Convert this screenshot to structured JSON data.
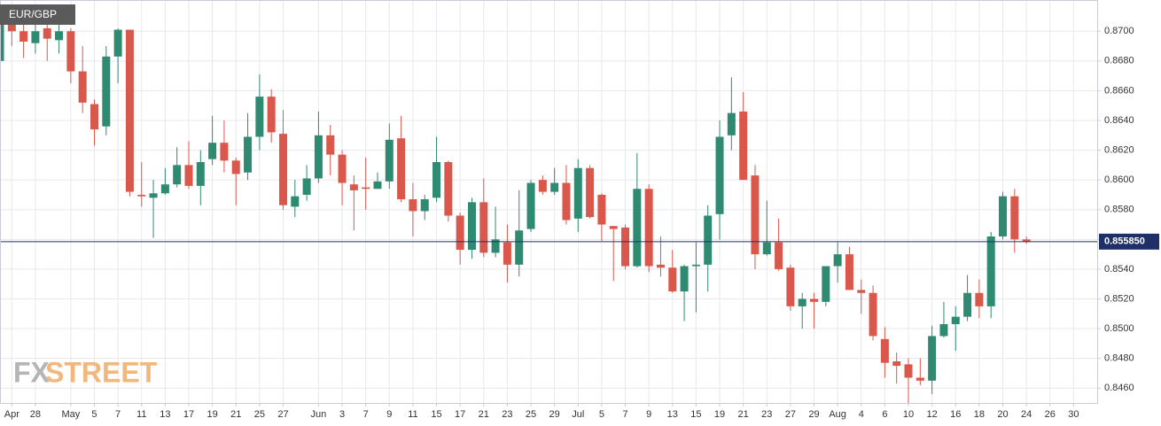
{
  "chart_data": {
    "type": "candlestick",
    "title": "EUR/GBP",
    "brand": {
      "prefix": "FX",
      "name": "STREET"
    },
    "up_color": "#2f8a72",
    "down_color": "#d9584b",
    "grid": true,
    "x": [
      0,
      1,
      2,
      3,
      4,
      5,
      6,
      7,
      8,
      9,
      10,
      11,
      12,
      13,
      14,
      15,
      16,
      17,
      18,
      19,
      20,
      21,
      22,
      23,
      24,
      25,
      26,
      27,
      28,
      29,
      30,
      31,
      32,
      33,
      34,
      35,
      36,
      37,
      38,
      39,
      40,
      41,
      42,
      43,
      44,
      45,
      46,
      47,
      48,
      49,
      50,
      51,
      52,
      53,
      54,
      55,
      56,
      57,
      58,
      59,
      60,
      61,
      62,
      63,
      64,
      65,
      66,
      67,
      68,
      69,
      70,
      71,
      72,
      73,
      74,
      75,
      76,
      77,
      78,
      79,
      80,
      81,
      82,
      83,
      84,
      85,
      86,
      87
    ],
    "open": [
      0.868,
      0.8712,
      0.87,
      0.8692,
      0.8702,
      0.8694,
      0.87,
      0.8673,
      0.8651,
      0.8636,
      0.8683,
      0.8701,
      0.859,
      0.8588,
      0.8591,
      0.8597,
      0.861,
      0.8596,
      0.8614,
      0.8625,
      0.8613,
      0.8605,
      0.8629,
      0.8656,
      0.8631,
      0.8582,
      0.859,
      0.8601,
      0.863,
      0.8617,
      0.8597,
      0.8595,
      0.8594,
      0.8599,
      0.8628,
      0.8587,
      0.8579,
      0.8588,
      0.8612,
      0.8576,
      0.8553,
      0.8585,
      0.8551,
      0.8558,
      0.8543,
      0.8567,
      0.86,
      0.8592,
      0.8598,
      0.8574,
      0.8608,
      0.859,
      0.8569,
      0.8568,
      0.8542,
      0.8594,
      0.8543,
      0.8541,
      0.8525,
      0.8542,
      0.8543,
      0.8577,
      0.863,
      0.8646,
      0.8603,
      0.855,
      0.8558,
      0.8541,
      0.8515,
      0.852,
      0.8518,
      0.8542,
      0.855,
      0.8526,
      0.8524,
      0.8493,
      0.8478,
      0.8476,
      0.8467,
      0.8465,
      0.8495,
      0.8503,
      0.8508,
      0.8524,
      0.8515,
      0.8562,
      0.8589,
      0.856
    ],
    "high": [
      0.8715,
      0.8718,
      0.8706,
      0.8707,
      0.8708,
      0.8712,
      0.8702,
      0.869,
      0.8654,
      0.869,
      0.8702,
      0.8701,
      0.8612,
      0.86,
      0.8608,
      0.8622,
      0.8626,
      0.862,
      0.8643,
      0.864,
      0.8615,
      0.8645,
      0.8671,
      0.8661,
      0.8647,
      0.86,
      0.861,
      0.8646,
      0.8637,
      0.862,
      0.8603,
      0.8615,
      0.8605,
      0.8638,
      0.8643,
      0.8598,
      0.859,
      0.8629,
      0.8613,
      0.8578,
      0.8588,
      0.8601,
      0.8582,
      0.857,
      0.8593,
      0.86,
      0.8603,
      0.8608,
      0.861,
      0.8614,
      0.861,
      0.8591,
      0.8569,
      0.857,
      0.8618,
      0.8597,
      0.8562,
      0.8553,
      0.8543,
      0.8558,
      0.8583,
      0.864,
      0.8669,
      0.8659,
      0.861,
      0.8586,
      0.8574,
      0.8543,
      0.8524,
      0.8524,
      0.8542,
      0.8558,
      0.8555,
      0.8533,
      0.8529,
      0.8501,
      0.8484,
      0.848,
      0.848,
      0.8502,
      0.8518,
      0.8515,
      0.8536,
      0.8533,
      0.8565,
      0.8592,
      0.8594,
      0.8562
    ],
    "low": [
      0.8672,
      0.869,
      0.8682,
      0.8685,
      0.868,
      0.8685,
      0.8665,
      0.8645,
      0.8623,
      0.863,
      0.8665,
      0.8589,
      0.8582,
      0.8561,
      0.859,
      0.8595,
      0.8594,
      0.8583,
      0.861,
      0.8605,
      0.8583,
      0.86,
      0.862,
      0.8625,
      0.858,
      0.8575,
      0.8586,
      0.8598,
      0.8603,
      0.8583,
      0.8566,
      0.858,
      0.8594,
      0.8594,
      0.8585,
      0.8562,
      0.8573,
      0.8585,
      0.8572,
      0.8543,
      0.8547,
      0.8548,
      0.8548,
      0.8531,
      0.8535,
      0.8565,
      0.859,
      0.859,
      0.857,
      0.8565,
      0.8574,
      0.8559,
      0.8532,
      0.854,
      0.8541,
      0.8538,
      0.8535,
      0.8524,
      0.8505,
      0.8511,
      0.8525,
      0.856,
      0.862,
      0.86,
      0.854,
      0.8549,
      0.8539,
      0.8512,
      0.85,
      0.85,
      0.8515,
      0.8531,
      0.8526,
      0.851,
      0.8492,
      0.8467,
      0.8463,
      0.845,
      0.8462,
      0.8456,
      0.8494,
      0.8485,
      0.8505,
      0.8507,
      0.8507,
      0.856,
      0.8551,
      0.8557
    ],
    "close": [
      0.8705,
      0.87,
      0.8693,
      0.87,
      0.8695,
      0.87,
      0.8673,
      0.8652,
      0.8634,
      0.8683,
      0.8701,
      0.8592,
      0.8589,
      0.8591,
      0.8597,
      0.861,
      0.8596,
      0.8612,
      0.8625,
      0.8613,
      0.8604,
      0.8629,
      0.8656,
      0.8632,
      0.8583,
      0.8589,
      0.8601,
      0.863,
      0.8617,
      0.8598,
      0.8593,
      0.8594,
      0.8599,
      0.8627,
      0.8587,
      0.8579,
      0.8587,
      0.8612,
      0.8576,
      0.8553,
      0.8585,
      0.8551,
      0.856,
      0.8543,
      0.8566,
      0.8598,
      0.8592,
      0.8598,
      0.8573,
      0.8608,
      0.8575,
      0.857,
      0.8567,
      0.8542,
      0.8594,
      0.8542,
      0.8541,
      0.8525,
      0.8542,
      0.8543,
      0.8576,
      0.8629,
      0.8645,
      0.86,
      0.855,
      0.8558,
      0.854,
      0.8515,
      0.852,
      0.8518,
      0.8542,
      0.855,
      0.8526,
      0.8524,
      0.8495,
      0.8477,
      0.8475,
      0.8467,
      0.8465,
      0.8495,
      0.8503,
      0.8508,
      0.8524,
      0.8515,
      0.8562,
      0.8589,
      0.856,
      0.85585
    ],
    "last": {
      "value": 0.85585,
      "label": "0.855850"
    },
    "last_color": "#1f3068",
    "xlim": [
      0,
      93
    ],
    "xticks": [
      {
        "value": 1,
        "label": "Apr"
      },
      {
        "value": 3,
        "label": "28"
      },
      {
        "value": 6,
        "label": "May"
      },
      {
        "value": 8,
        "label": "5"
      },
      {
        "value": 10,
        "label": "7"
      },
      {
        "value": 12,
        "label": "11"
      },
      {
        "value": 14,
        "label": "13"
      },
      {
        "value": 16,
        "label": "17"
      },
      {
        "value": 18,
        "label": "19"
      },
      {
        "value": 20,
        "label": "21"
      },
      {
        "value": 22,
        "label": "25"
      },
      {
        "value": 24,
        "label": "27"
      },
      {
        "value": 27,
        "label": "Jun"
      },
      {
        "value": 29,
        "label": "3"
      },
      {
        "value": 31,
        "label": "7"
      },
      {
        "value": 33,
        "label": "9"
      },
      {
        "value": 35,
        "label": "11"
      },
      {
        "value": 37,
        "label": "15"
      },
      {
        "value": 39,
        "label": "17"
      },
      {
        "value": 41,
        "label": "21"
      },
      {
        "value": 43,
        "label": "23"
      },
      {
        "value": 45,
        "label": "25"
      },
      {
        "value": 47,
        "label": "29"
      },
      {
        "value": 49,
        "label": "Jul"
      },
      {
        "value": 51,
        "label": "5"
      },
      {
        "value": 53,
        "label": "7"
      },
      {
        "value": 55,
        "label": "9"
      },
      {
        "value": 57,
        "label": "13"
      },
      {
        "value": 59,
        "label": "15"
      },
      {
        "value": 61,
        "label": "19"
      },
      {
        "value": 63,
        "label": "21"
      },
      {
        "value": 65,
        "label": "23"
      },
      {
        "value": 67,
        "label": "27"
      },
      {
        "value": 69,
        "label": "29"
      },
      {
        "value": 71,
        "label": "Aug"
      },
      {
        "value": 73,
        "label": "4"
      },
      {
        "value": 75,
        "label": "6"
      },
      {
        "value": 77,
        "label": "10"
      },
      {
        "value": 79,
        "label": "12"
      },
      {
        "value": 81,
        "label": "16"
      },
      {
        "value": 83,
        "label": "18"
      },
      {
        "value": 85,
        "label": "20"
      },
      {
        "value": 87,
        "label": "24"
      },
      {
        "value": 89,
        "label": "26"
      },
      {
        "value": 91,
        "label": "30"
      }
    ],
    "ylim": [
      0.845,
      0.8721
    ],
    "yticks": [
      {
        "value": 0.846,
        "label": "0.8460"
      },
      {
        "value": 0.848,
        "label": "0.8480"
      },
      {
        "value": 0.85,
        "label": "0.8500"
      },
      {
        "value": 0.852,
        "label": "0.8520"
      },
      {
        "value": 0.854,
        "label": "0.8540"
      },
      {
        "value": 0.856,
        "label": "0.8560"
      },
      {
        "value": 0.858,
        "label": "0.8580"
      },
      {
        "value": 0.86,
        "label": "0.8600"
      },
      {
        "value": 0.862,
        "label": "0.8620"
      },
      {
        "value": 0.864,
        "label": "0.8640"
      },
      {
        "value": 0.866,
        "label": "0.8660"
      },
      {
        "value": 0.868,
        "label": "0.8680"
      },
      {
        "value": 0.87,
        "label": "0.8700"
      }
    ]
  }
}
